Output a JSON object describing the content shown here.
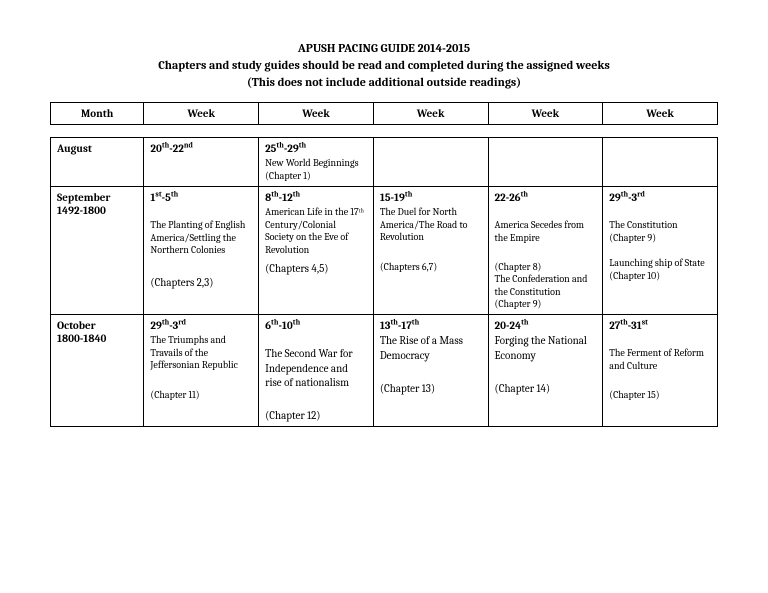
{
  "header": {
    "title": "APUSH PACING GUIDE 2014-2015",
    "line2": "Chapters and study guides should be read and completed during the assigned weeks",
    "line3": "(This does not include additional outside readings)"
  },
  "columns": {
    "month": "Month",
    "w1": "Week",
    "w2": "Week",
    "w3": "Week",
    "w4": "Week",
    "w5": "Week"
  },
  "rows": {
    "aug": {
      "month": "August",
      "c1": {
        "date_a": "20",
        "sup_a": "th",
        "dash": "-",
        "date_b": "22",
        "sup_b": "nd"
      },
      "c2": {
        "date_a": "25",
        "sup_a": "th",
        "dash": "-",
        "date_b": "29",
        "sup_b": "th",
        "desc": "New World Beginnings (Chapter 1)"
      }
    },
    "sep": {
      "month_a": "September",
      "month_b": "1492-1800",
      "c1": {
        "date_a": "1",
        "sup_a": "st",
        "dash": "-",
        "date_b": "5",
        "sup_b": "th",
        "desc": "The Planting of English America/Settling the Northern Colonies",
        "chap": "(Chapters 2,3)"
      },
      "c2": {
        "date_a": "8",
        "sup_a": "th",
        "dash": "-",
        "date_b": "12",
        "sup_b": "th",
        "desc": "American Life in the 17ᵗʰ Century/Colonial Society on the Eve of Revolution",
        "chap": "(Chapters 4,5)"
      },
      "c3": {
        "date_a": "15",
        "dash": "-",
        "date_b": "19",
        "sup_b": "th",
        "desc": "The Duel for North America/The Road to Revolution",
        "chap": "(Chapters 6,7)"
      },
      "c4": {
        "date_a": "22",
        "dash": "-",
        "date_b": "26",
        "sup_b": "th",
        "desc": "America Secedes from the Empire",
        "chap1": "(Chapter 8)",
        "desc2": "The Confederation and the Constitution",
        "chap2": "(Chapter 9)"
      },
      "c5": {
        "date_a": "29",
        "sup_a": "th",
        "dash": "-",
        "date_b": "3",
        "sup_b": "rd",
        "desc": "The Constitution (Chapter 9)",
        "desc2": "Launching ship of State (Chapter 10)"
      }
    },
    "oct": {
      "month_a": "October",
      "month_b": "1800-1840",
      "c1": {
        "date_a": "29",
        "sup_a": "th",
        "dash": "-",
        "date_b": "3",
        "sup_b": "rd",
        "desc": "The Triumphs and Travails of the Jeffersonian Republic",
        "chap": "(Chapter 11)"
      },
      "c2": {
        "date_a": "6",
        "sup_a": "th",
        "dash": "-",
        "date_b": "10",
        "sup_b": "th",
        "desc": "The Second War for Independence and rise of nationalism",
        "chap": "(Chapter 12)"
      },
      "c3": {
        "date_a": "13",
        "sup_a": "th",
        "dash": "-",
        "date_b": "17",
        "sup_b": "th",
        "desc": "The Rise of a Mass Democracy",
        "chap": "(Chapter 13)"
      },
      "c4": {
        "date_a": "20",
        "dash": "-",
        "date_b": "24",
        "sup_b": "th",
        "desc": "Forging the National Economy",
        "chap": "(Chapter 14)"
      },
      "c5": {
        "date_a": "27",
        "sup_a": "th",
        "dash": "-",
        "date_b": "31",
        "sup_b": "st",
        "desc": "The Ferment of Reform and Culture",
        "chap": "(Chapter 15)"
      }
    }
  }
}
